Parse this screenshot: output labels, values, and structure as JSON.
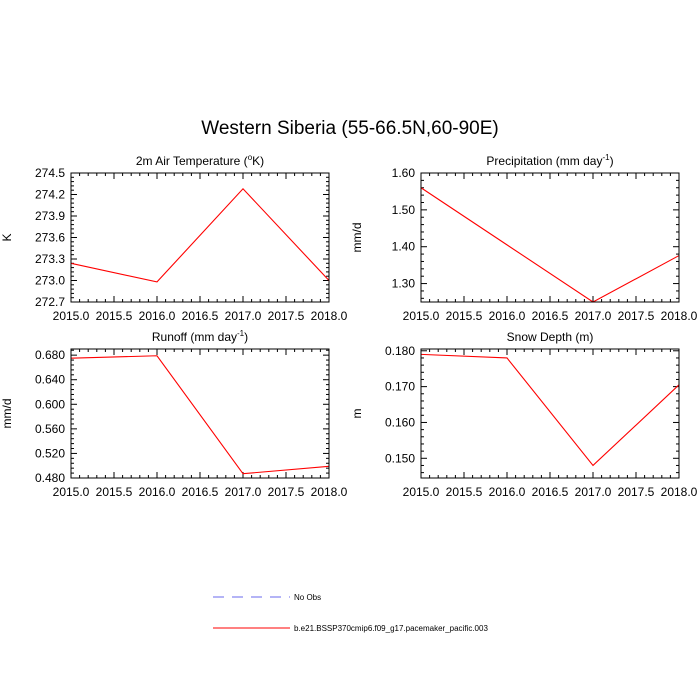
{
  "title": "Western Siberia (55-66.5N,60-90E)",
  "line_color": "#ff0000",
  "obs_color": "#6a6aee",
  "legend": {
    "items": [
      {
        "label": "No Obs",
        "style": "dashed",
        "color": "#6a6aee"
      },
      {
        "label": "b.e21.BSSP370cmip6.f09_g17.pacemaker_pacific.003",
        "style": "solid",
        "color": "#ff0000"
      }
    ]
  },
  "chart_data": [
    {
      "type": "line",
      "title": "2m Air Temperature (",
      "title_sup": "o",
      "title_suffix": "K)",
      "ylabel": "K",
      "x": [
        2015,
        2016,
        2017,
        2018
      ],
      "xlim": [
        2015,
        2018
      ],
      "xticks": [
        "2015.0",
        "2015.5",
        "2016.0",
        "2016.5",
        "2017.0",
        "2017.5",
        "2018.0"
      ],
      "ylim": [
        272.7,
        274.5
      ],
      "yticks": [
        "272.7",
        "273.0",
        "273.3",
        "273.6",
        "273.9",
        "274.2",
        "274.5"
      ],
      "series": [
        {
          "values": [
            273.24,
            272.98,
            274.28,
            273.0
          ]
        }
      ]
    },
    {
      "type": "line",
      "title": "Precipitation (mm day",
      "title_sup": "-1",
      "title_suffix": ")",
      "ylabel": "mm/d",
      "x": [
        2015,
        2016,
        2017,
        2018
      ],
      "xlim": [
        2015,
        2018
      ],
      "xticks": [
        "2015.0",
        "2015.5",
        "2016.0",
        "2016.5",
        "2017.0",
        "2017.5",
        "2018.0"
      ],
      "ylim": [
        1.25,
        1.6
      ],
      "yticks": [
        "1.30",
        "1.40",
        "1.50",
        "1.60"
      ],
      "series": [
        {
          "values": [
            1.56,
            1.405,
            1.25,
            1.376
          ]
        }
      ]
    },
    {
      "type": "line",
      "title": "Runoff (mm day",
      "title_sup": "-1",
      "title_suffix": ")",
      "ylabel": "mm/d",
      "x": [
        2015,
        2016,
        2017,
        2018
      ],
      "xlim": [
        2015,
        2018
      ],
      "xticks": [
        "2015.0",
        "2015.5",
        "2016.0",
        "2016.5",
        "2017.0",
        "2017.5",
        "2018.0"
      ],
      "ylim": [
        0.48,
        0.69
      ],
      "yticks": [
        "0.480",
        "0.520",
        "0.560",
        "0.600",
        "0.640",
        "0.680"
      ],
      "series": [
        {
          "values": [
            0.675,
            0.679,
            0.487,
            0.499
          ]
        }
      ]
    },
    {
      "type": "line",
      "title": "Snow Depth (m)",
      "title_sup": "",
      "title_suffix": "",
      "ylabel": "m",
      "x": [
        2015,
        2016,
        2017,
        2018
      ],
      "xlim": [
        2015,
        2018
      ],
      "xticks": [
        "2015.0",
        "2015.5",
        "2016.0",
        "2016.5",
        "2017.0",
        "2017.5",
        "2018.0"
      ],
      "ylim": [
        0.1445,
        0.1805
      ],
      "yticks": [
        "0.150",
        "0.160",
        "0.170",
        "0.180"
      ],
      "series": [
        {
          "values": [
            0.179,
            0.178,
            0.148,
            0.1705
          ]
        }
      ]
    }
  ]
}
